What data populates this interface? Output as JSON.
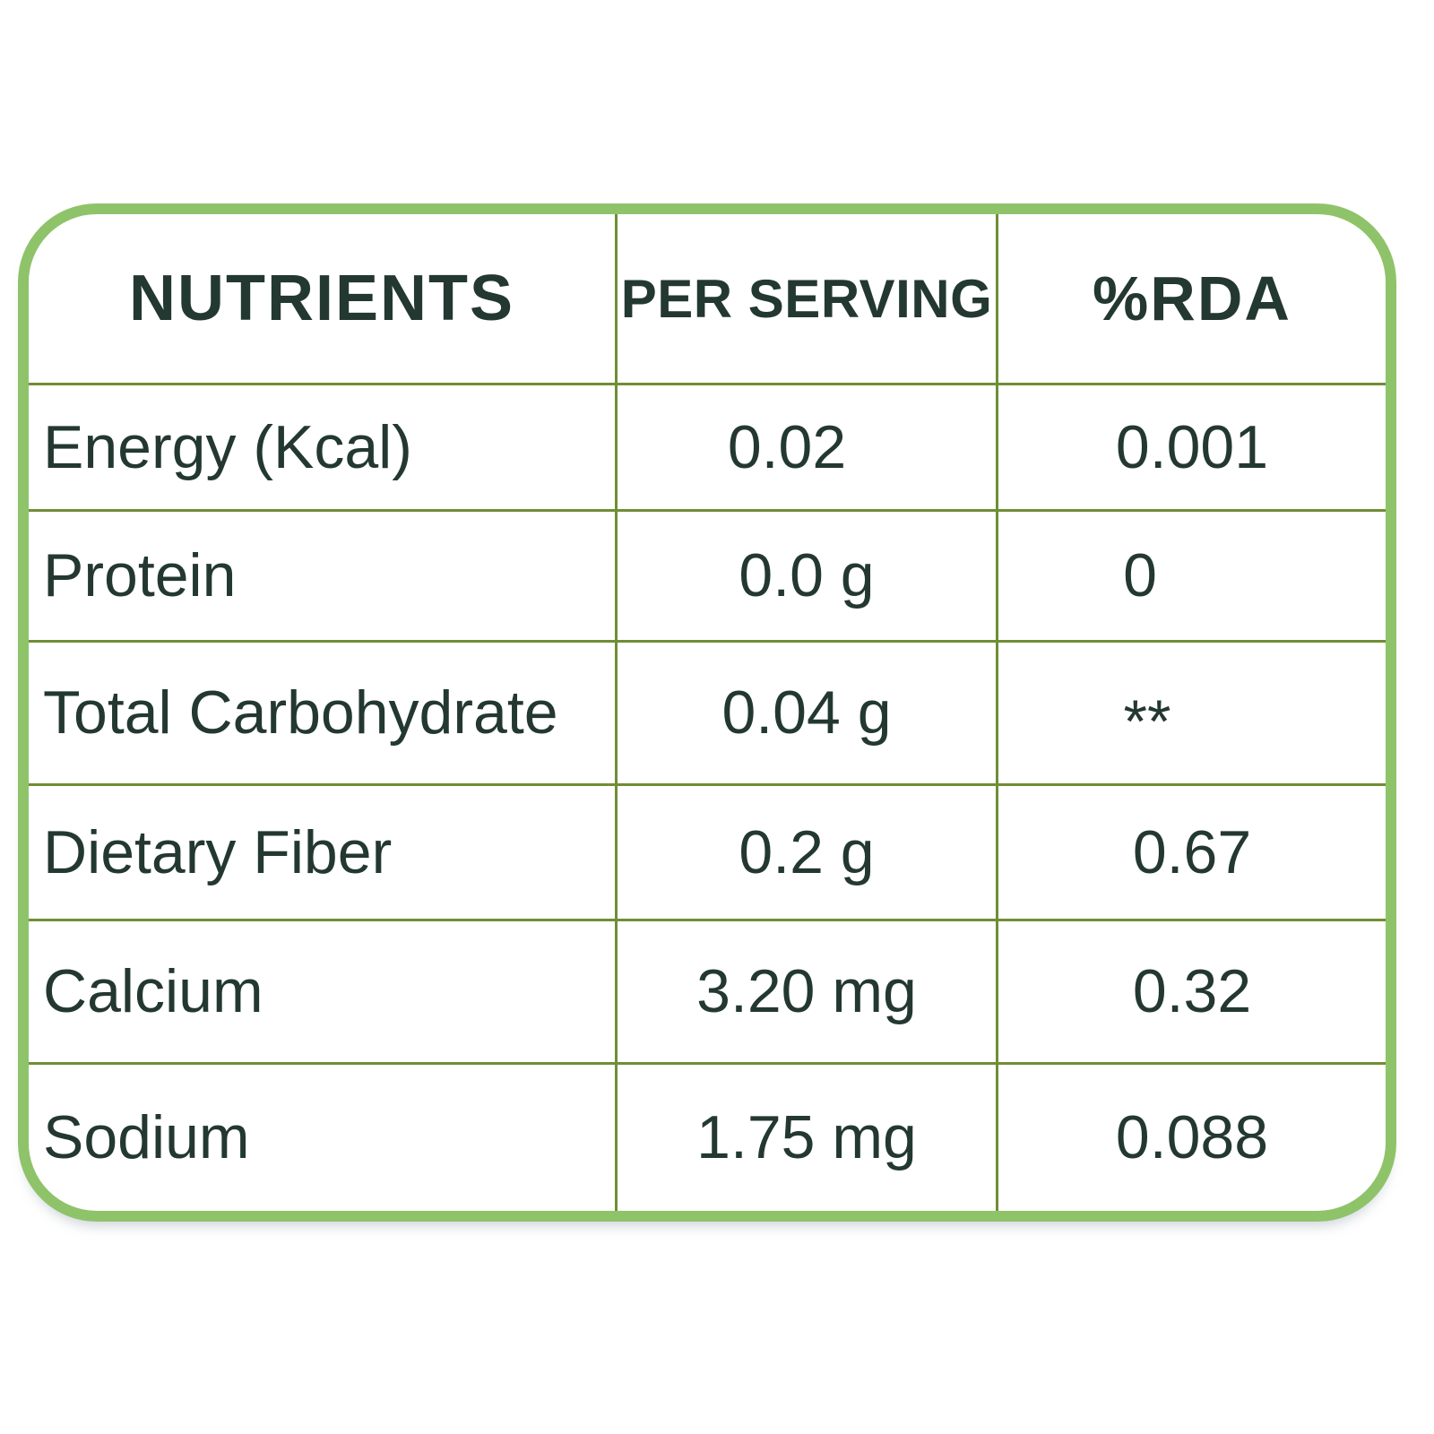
{
  "chart_data": {
    "type": "table",
    "title": "",
    "columns": [
      "NUTRIENTS",
      "PER SERVING",
      "%RDA"
    ],
    "rows": [
      {
        "nutrient": "Energy (Kcal)",
        "per_serving": "0.02",
        "rda": "0.001"
      },
      {
        "nutrient": "Protein",
        "per_serving": "0.0 g",
        "rda": "0"
      },
      {
        "nutrient": "Total Carbohydrate",
        "per_serving": "0.04 g",
        "rda": "**"
      },
      {
        "nutrient": "Dietary Fiber",
        "per_serving": "0.2 g",
        "rda": "0.67"
      },
      {
        "nutrient": "Calcium",
        "per_serving": "3.20 mg",
        "rda": "0.32"
      },
      {
        "nutrient": "Sodium",
        "per_serving": "1.75 mg",
        "rda": "0.088"
      }
    ]
  },
  "colors": {
    "outer_border": "#8fc36a",
    "grid_line": "#6f8e35",
    "text": "#233830",
    "background": "#ffffff"
  }
}
